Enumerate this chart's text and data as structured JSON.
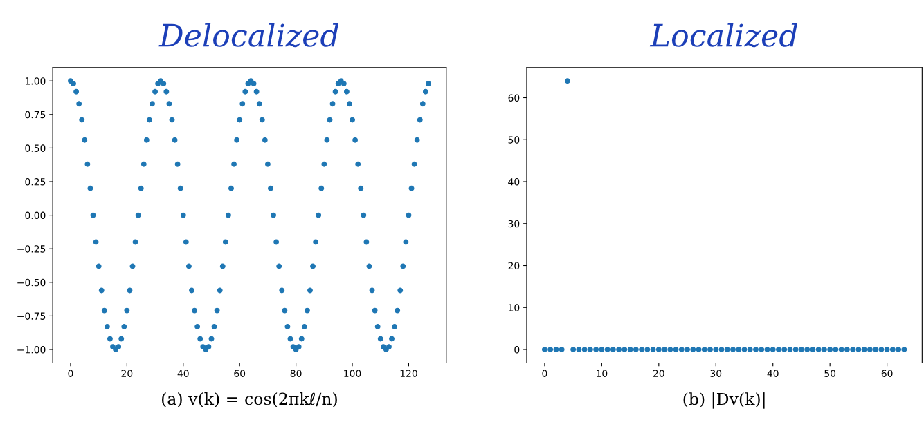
{
  "chart_data": [
    {
      "type": "scatter",
      "title": "Delocalized",
      "xlabel": "(a) v(k) = cos(2πkℓ/n)",
      "marker": "circle",
      "grid": false,
      "x": [
        0,
        1,
        2,
        3,
        4,
        5,
        6,
        7,
        8,
        9,
        10,
        11,
        12,
        13,
        14,
        15,
        16,
        17,
        18,
        19,
        20,
        21,
        22,
        23,
        24,
        25,
        26,
        27,
        28,
        29,
        30,
        31,
        32,
        33,
        34,
        35,
        36,
        37,
        38,
        39,
        40,
        41,
        42,
        43,
        44,
        45,
        46,
        47,
        48,
        49,
        50,
        51,
        52,
        53,
        54,
        55,
        56,
        57,
        58,
        59,
        60,
        61,
        62,
        63,
        64,
        65,
        66,
        67,
        68,
        69,
        70,
        71,
        72,
        73,
        74,
        75,
        76,
        77,
        78,
        79,
        80,
        81,
        82,
        83,
        84,
        85,
        86,
        87,
        88,
        89,
        90,
        91,
        92,
        93,
        94,
        95,
        96,
        97,
        98,
        99,
        100,
        101,
        102,
        103,
        104,
        105,
        106,
        107,
        108,
        109,
        110,
        111,
        112,
        113,
        114,
        115,
        116,
        117,
        118,
        119,
        120,
        121,
        122,
        123,
        124,
        125,
        126,
        127
      ],
      "series": [
        {
          "color": "#1f77b4",
          "values": [
            1,
            0.98,
            0.92,
            0.83,
            0.71,
            0.56,
            0.38,
            0.2,
            0,
            -0.2,
            -0.38,
            -0.56,
            -0.71,
            -0.83,
            -0.92,
            -0.98,
            -1,
            -0.98,
            -0.92,
            -0.83,
            -0.71,
            -0.56,
            -0.38,
            -0.2,
            0,
            0.2,
            0.38,
            0.56,
            0.71,
            0.83,
            0.92,
            0.98,
            1,
            0.98,
            0.92,
            0.83,
            0.71,
            0.56,
            0.38,
            0.2,
            0,
            -0.2,
            -0.38,
            -0.56,
            -0.71,
            -0.83,
            -0.92,
            -0.98,
            -1,
            -0.98,
            -0.92,
            -0.83,
            -0.71,
            -0.56,
            -0.38,
            -0.2,
            0,
            0.2,
            0.38,
            0.56,
            0.71,
            0.83,
            0.92,
            0.98,
            1,
            0.98,
            0.92,
            0.83,
            0.71,
            0.56,
            0.38,
            0.2,
            0,
            -0.2,
            -0.38,
            -0.56,
            -0.71,
            -0.83,
            -0.92,
            -0.98,
            -1,
            -0.98,
            -0.92,
            -0.83,
            -0.71,
            -0.56,
            -0.38,
            -0.2,
            0,
            0.2,
            0.38,
            0.56,
            0.71,
            0.83,
            0.92,
            0.98,
            1,
            0.98,
            0.92,
            0.83,
            0.71,
            0.56,
            0.38,
            0.2,
            0,
            -0.2,
            -0.38,
            -0.56,
            -0.71,
            -0.83,
            -0.92,
            -0.98,
            -1,
            -0.98,
            -0.92,
            -0.83,
            -0.71,
            -0.56,
            -0.38,
            -0.2,
            0,
            0.2,
            0.38,
            0.56,
            0.71,
            0.83,
            0.92,
            0.98
          ]
        }
      ],
      "xlim": [
        -6.35,
        133.35
      ],
      "xticks": [
        0,
        20,
        40,
        60,
        80,
        100,
        120
      ],
      "ylim": [
        -1.1,
        1.1
      ],
      "yticks": [
        {
          "value": -1,
          "label": "−1.00"
        },
        {
          "value": -0.75,
          "label": "−0.75"
        },
        {
          "value": -0.5,
          "label": "−0.50"
        },
        {
          "value": -0.25,
          "label": "−0.25"
        },
        {
          "value": 0,
          "label": "0.00"
        },
        {
          "value": 0.25,
          "label": "0.25"
        },
        {
          "value": 0.5,
          "label": "0.50"
        },
        {
          "value": 0.75,
          "label": "0.75"
        },
        {
          "value": 1,
          "label": "1.00"
        }
      ]
    },
    {
      "type": "scatter",
      "title": "Localized",
      "xlabel": "(b) |Dv(k)|",
      "marker": "circle",
      "grid": false,
      "x": [
        0,
        1,
        2,
        3,
        4,
        5,
        6,
        7,
        8,
        9,
        10,
        11,
        12,
        13,
        14,
        15,
        16,
        17,
        18,
        19,
        20,
        21,
        22,
        23,
        24,
        25,
        26,
        27,
        28,
        29,
        30,
        31,
        32,
        33,
        34,
        35,
        36,
        37,
        38,
        39,
        40,
        41,
        42,
        43,
        44,
        45,
        46,
        47,
        48,
        49,
        50,
        51,
        52,
        53,
        54,
        55,
        56,
        57,
        58,
        59,
        60,
        61,
        62,
        63
      ],
      "series": [
        {
          "color": "#1f77b4",
          "values": [
            0,
            0,
            0,
            0,
            64,
            0,
            0,
            0,
            0,
            0,
            0,
            0,
            0,
            0,
            0,
            0,
            0,
            0,
            0,
            0,
            0,
            0,
            0,
            0,
            0,
            0,
            0,
            0,
            0,
            0,
            0,
            0,
            0,
            0,
            0,
            0,
            0,
            0,
            0,
            0,
            0,
            0,
            0,
            0,
            0,
            0,
            0,
            0,
            0,
            0,
            0,
            0,
            0,
            0,
            0,
            0,
            0,
            0,
            0,
            0,
            0,
            0,
            0,
            0
          ]
        }
      ],
      "xlim": [
        -3.15,
        66.15
      ],
      "xticks": [
        0,
        10,
        20,
        30,
        40,
        50,
        60
      ],
      "ylim": [
        -3.2,
        67.2
      ],
      "yticks": [
        0,
        10,
        20,
        30,
        40,
        50,
        60
      ]
    }
  ]
}
